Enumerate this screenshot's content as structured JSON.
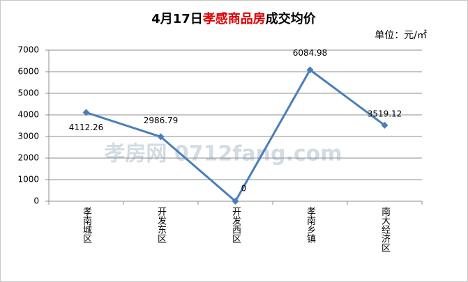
{
  "chart_data": {
    "type": "line",
    "title_parts": [
      "4月17日",
      "孝感商品房",
      "成交均价"
    ],
    "title_colors": [
      "#000000",
      "#e00000",
      "#000000"
    ],
    "unit": "单位：元/㎡",
    "watermark": "孝房网 0712fang.com",
    "categories": [
      "孝南城区",
      "开发东区",
      "开发西区",
      "孝南乡镇",
      "南大经济区"
    ],
    "series": [
      {
        "name": "成交均价",
        "color": "#4a7ebb",
        "values": [
          4112.26,
          2986.79,
          0,
          6084.98,
          3519.12
        ]
      }
    ],
    "ylim": [
      0,
      7000
    ],
    "yticks": [
      0,
      1000,
      2000,
      3000,
      4000,
      5000,
      6000,
      7000
    ],
    "grid": true
  }
}
